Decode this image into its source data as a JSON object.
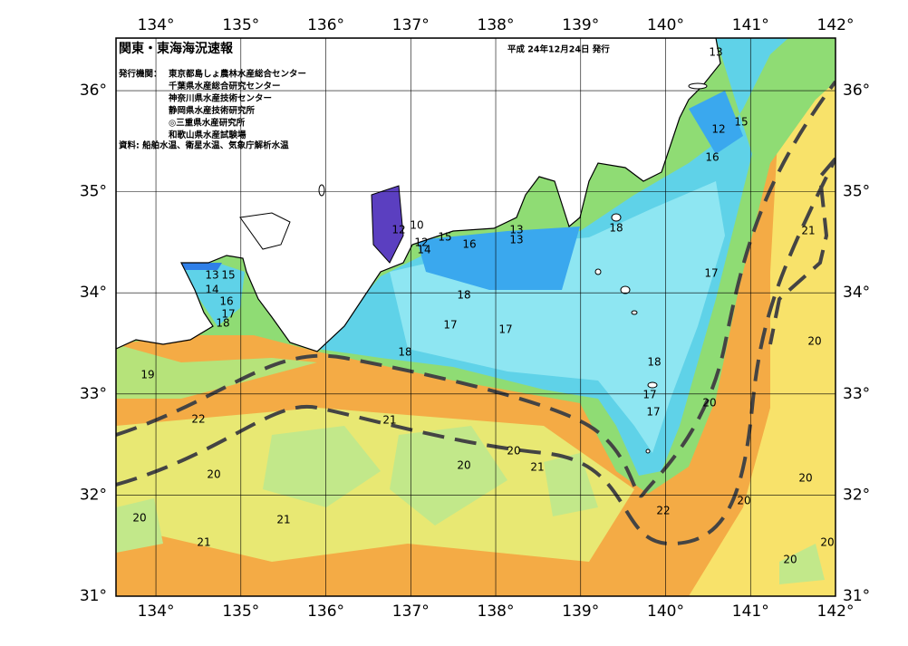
{
  "header": {
    "title": "関東・東海海況速報",
    "issued": "平成 24年12月24日 発行"
  },
  "publishers": {
    "label": "発行機関：",
    "agencies": [
      "東京都島しょ農林水産総合センター",
      "千葉県水産総合研究センター",
      "神奈川県水産技術センター",
      "静岡県水産技術研究所",
      "◎三重県水産研究所",
      "和歌山県水産試験場"
    ]
  },
  "source": "資料: 船舶水温、衛星水温、気象庁解析水温",
  "axes": {
    "xlim": [
      133.53,
      142
    ],
    "ylim": [
      31,
      36.52
    ],
    "xticks": [
      {
        "value": 134,
        "label": "134°"
      },
      {
        "value": 135,
        "label": "135°"
      },
      {
        "value": 136,
        "label": "136°"
      },
      {
        "value": 137,
        "label": "137°"
      },
      {
        "value": 138,
        "label": "138°"
      },
      {
        "value": 139,
        "label": "139°"
      },
      {
        "value": 140,
        "label": "140°"
      },
      {
        "value": 141,
        "label": "141°"
      },
      {
        "value": 142,
        "label": "142°"
      }
    ],
    "yticks": [
      {
        "value": 31,
        "label": "31°"
      },
      {
        "value": 32,
        "label": "32°"
      },
      {
        "value": 33,
        "label": "33°"
      },
      {
        "value": 34,
        "label": "34°"
      },
      {
        "value": 35,
        "label": "35°"
      },
      {
        "value": 36,
        "label": "36°"
      }
    ]
  },
  "contour_labels": [
    13,
    15,
    12,
    16,
    21,
    17,
    18,
    20,
    20,
    18,
    17,
    17,
    20,
    20,
    22,
    20,
    20,
    12,
    10,
    12,
    14,
    15,
    16,
    13,
    13,
    18,
    17,
    17,
    18,
    13,
    15,
    14,
    16,
    17,
    18,
    19,
    22,
    21,
    20,
    20,
    21,
    20,
    20,
    21,
    21
  ]
}
